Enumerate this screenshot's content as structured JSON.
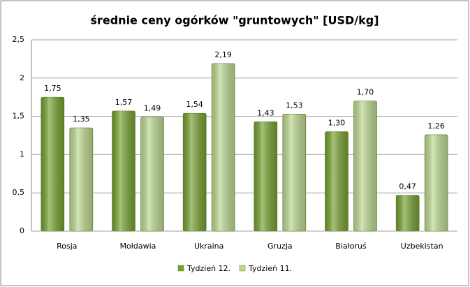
{
  "chart_data": {
    "type": "bar",
    "title": "średnie ceny ogórków \"gruntowych\" [USD/kg]",
    "categories": [
      "Rosja",
      "Mołdawia",
      "Ukraina",
      "Gruzja",
      "Białoruś",
      "Uzbekistan"
    ],
    "series": [
      {
        "name": "Tydzień 12.",
        "color": "#76a030",
        "values": [
          1.75,
          1.57,
          1.54,
          1.43,
          1.3,
          0.47
        ],
        "value_labels": [
          "1,75",
          "1,57",
          "1,54",
          "1,43",
          "1,30",
          "0,47"
        ]
      },
      {
        "name": "Tydzień 11.",
        "color": "#bcd890",
        "values": [
          1.35,
          1.49,
          2.19,
          1.53,
          1.7,
          1.26
        ],
        "value_labels": [
          "1,35",
          "1,49",
          "2,19",
          "1,53",
          "1,70",
          "1,26"
        ]
      }
    ],
    "ylim": [
      0,
      2.5
    ],
    "yticks": [
      0,
      {
        "value": 0.5,
        "label": "0,5"
      },
      1,
      {
        "value": 1.5,
        "label": "1,5"
      },
      2,
      {
        "value": 2.5,
        "label": "2,5"
      }
    ],
    "grid": true,
    "legend": "bottom"
  }
}
